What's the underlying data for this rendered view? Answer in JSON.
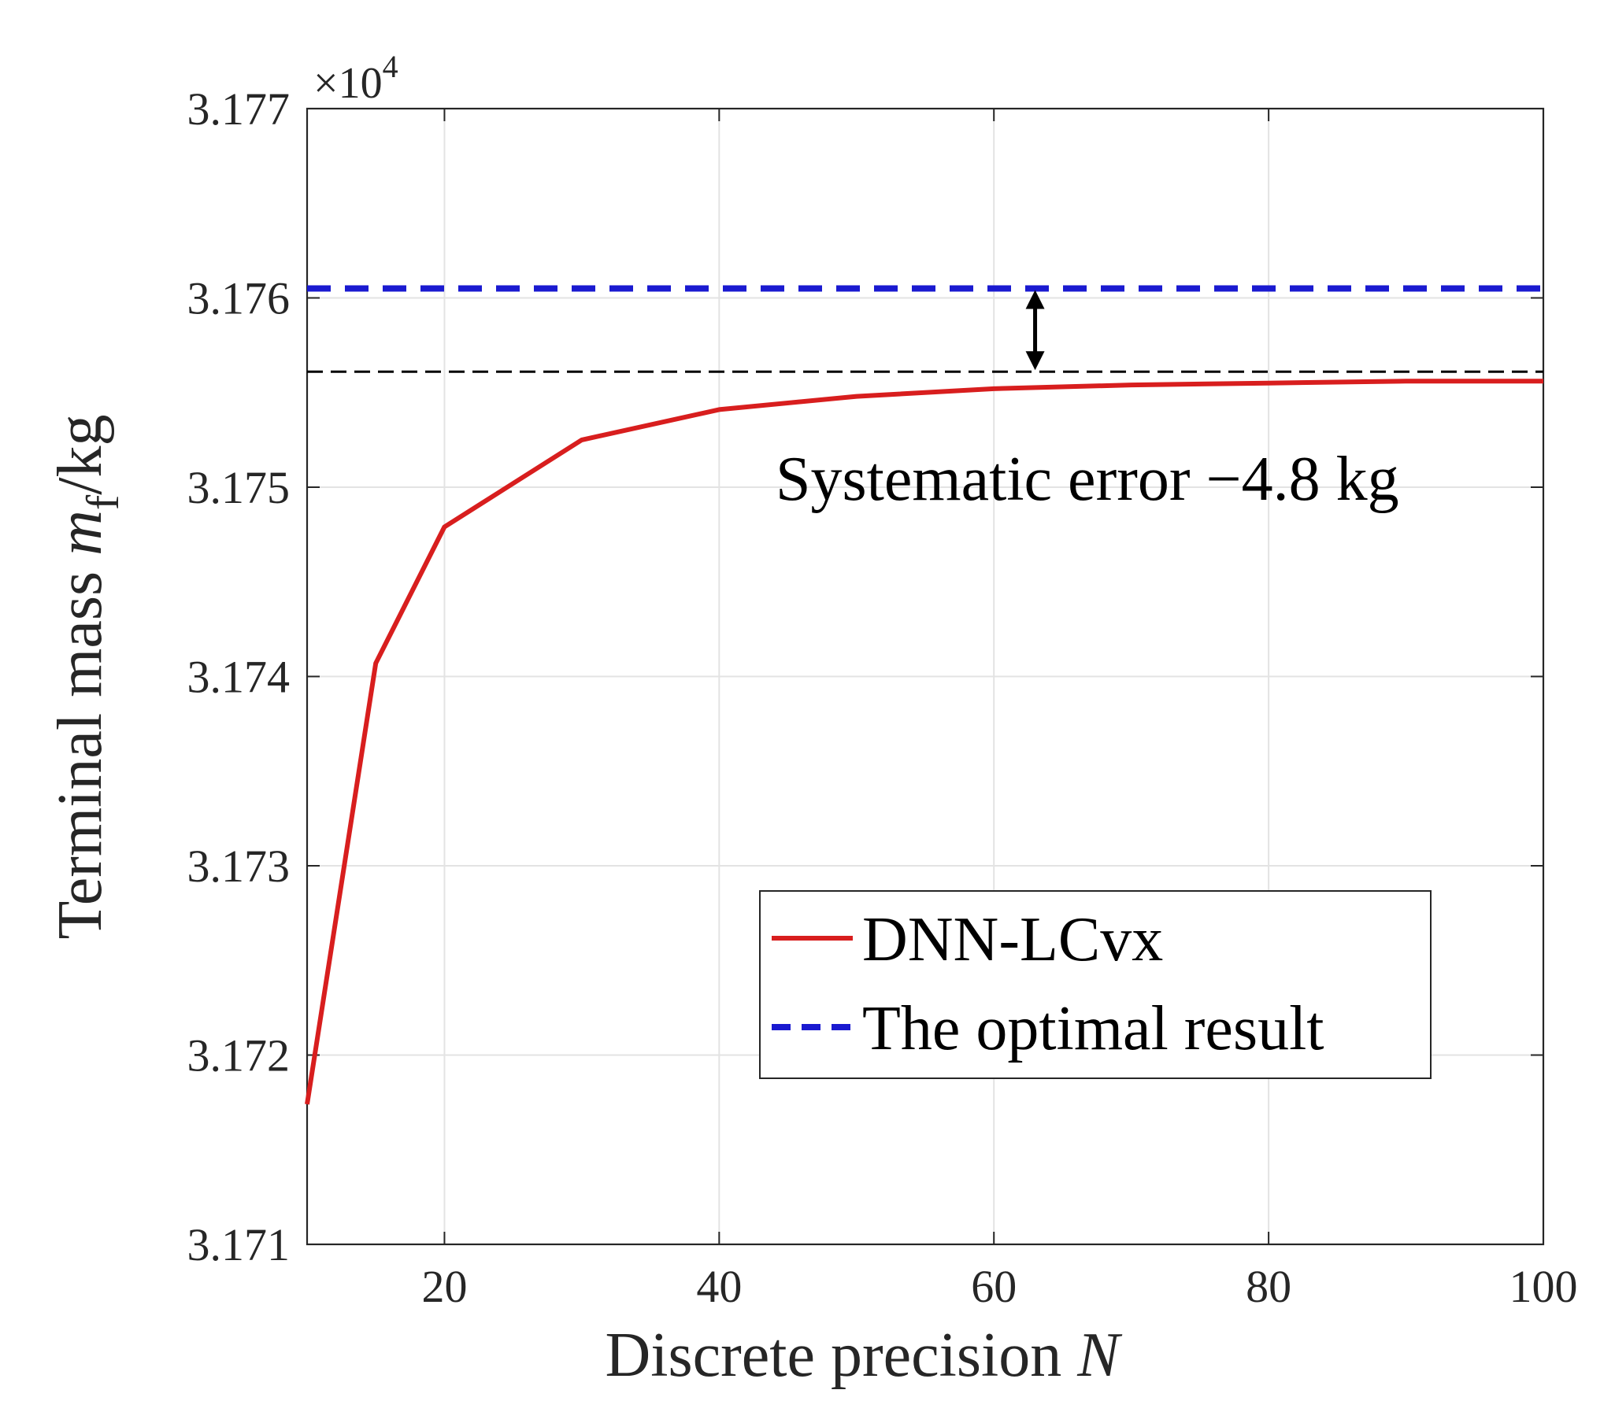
{
  "chart_data": {
    "type": "line",
    "xlabel_text": "Discrete precision ",
    "xlabel_var": "N",
    "ylabel_text": "Terminal mass ",
    "ylabel_var": "m",
    "ylabel_sub": "f",
    "ylabel_unit": "/kg",
    "y_multiplier_base": "×10",
    "y_multiplier_exp": "4",
    "xlim": [
      10,
      100
    ],
    "ylim": [
      3.171,
      3.177
    ],
    "x_ticks": [
      20,
      40,
      60,
      80,
      100
    ],
    "x_tick_labels": [
      "20",
      "40",
      "60",
      "80",
      "100"
    ],
    "y_ticks": [
      3.171,
      3.172,
      3.173,
      3.174,
      3.175,
      3.176,
      3.177
    ],
    "y_tick_labels": [
      "3.171",
      "3.172",
      "3.173",
      "3.174",
      "3.175",
      "3.176",
      "3.177"
    ],
    "grid": true,
    "legend_position": "lower-right",
    "series": [
      {
        "name": "DNN-LCvx",
        "color": "#d81e1e",
        "style": "solid",
        "x": [
          10,
          15,
          20,
          30,
          40,
          50,
          60,
          70,
          80,
          90,
          100
        ],
        "y": [
          3.17174,
          3.17407,
          3.17479,
          3.17525,
          3.17541,
          3.17548,
          3.17552,
          3.17554,
          3.17555,
          3.17556,
          3.17556
        ]
      },
      {
        "name": "The optimal result",
        "color": "#1a1ad0",
        "style": "dashed",
        "x": [
          10,
          100
        ],
        "y": [
          3.17605,
          3.17605
        ]
      }
    ],
    "reference_line": {
      "y": 3.17561,
      "color": "#000000",
      "style": "dashed"
    },
    "annotation": {
      "text": "Systematic error −4.8 kg",
      "arrow_x": 63,
      "arrow_y_from": 3.17561,
      "arrow_y_to": 3.17605
    }
  }
}
